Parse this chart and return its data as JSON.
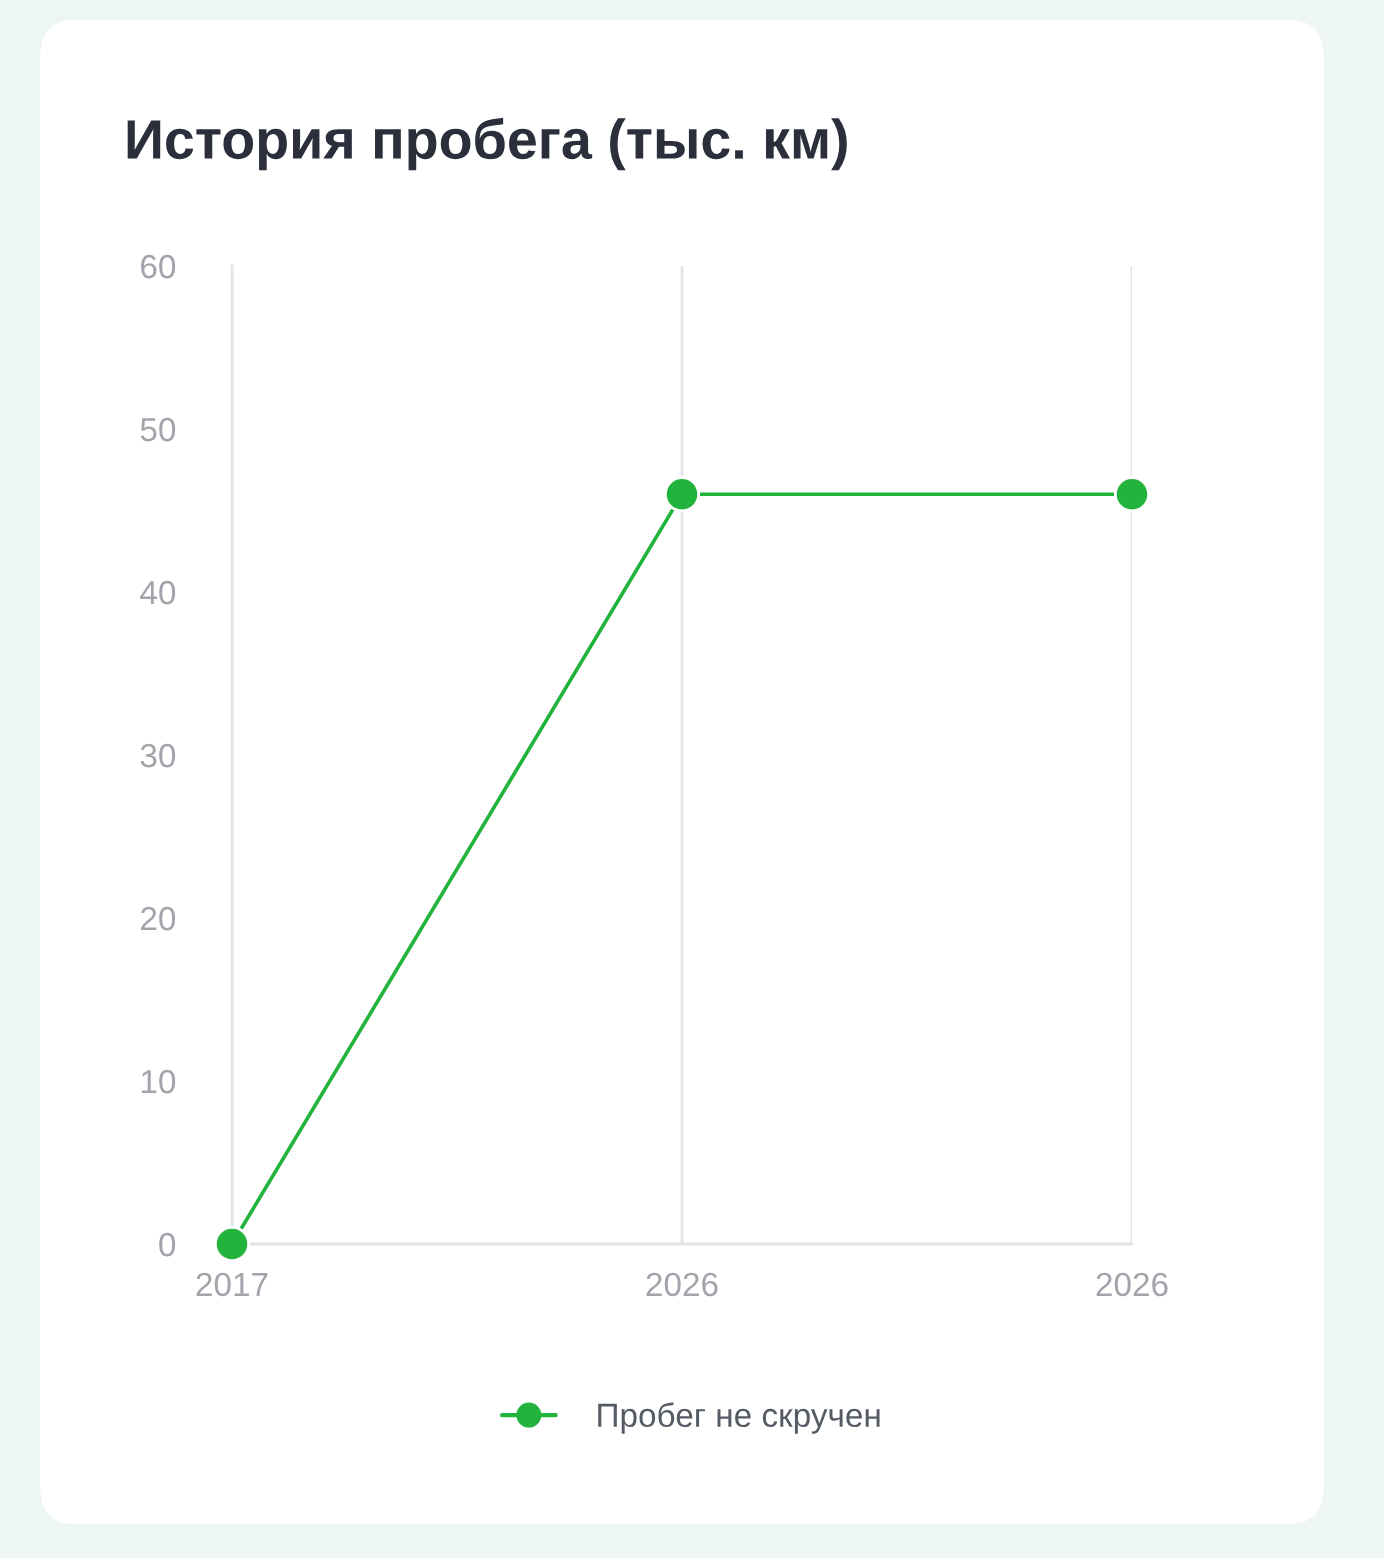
{
  "chart_data": {
    "type": "line",
    "title": "История пробега (тыс. км)",
    "categories": [
      "2017",
      "2026",
      "2026"
    ],
    "series": [
      {
        "name": "Пробег не скручен",
        "color": "#22b33c",
        "values": [
          0,
          46,
          46
        ]
      }
    ],
    "ylim": [
      0,
      60
    ],
    "yticks": [
      0,
      10,
      20,
      30,
      40,
      50,
      60
    ],
    "grid": "x",
    "legend": "bottom",
    "marker": "circle",
    "line_style": "solid"
  }
}
